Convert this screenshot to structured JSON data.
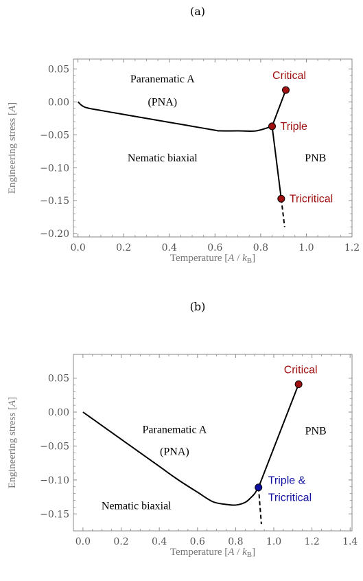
{
  "colors": {
    "critical": "#a01010",
    "triple_tricritical": "#1010a0",
    "curve": "#000000",
    "frame": "#888888"
  },
  "chart_data": [
    {
      "type": "line",
      "panel_label": "(a)",
      "xlabel": "Temperature [A / k_B]",
      "ylabel": "Engineering stress [A]",
      "xlim": [
        -0.02,
        1.2
      ],
      "ylim": [
        -0.205,
        0.065
      ],
      "xticks": [
        0.0,
        0.2,
        0.4,
        0.6,
        0.8,
        1.0,
        1.2
      ],
      "xtick_labels": [
        "0.0",
        "0.2",
        "0.4",
        "0.6",
        "0.8",
        "1.0",
        "1.2"
      ],
      "yticks": [
        0.05,
        0.0,
        -0.05,
        -0.1,
        -0.15,
        -0.2
      ],
      "ytick_labels": [
        "0.05",
        "0.00",
        "−0.05",
        "−0.10",
        "−0.15",
        "−0.20"
      ],
      "grid": false,
      "series": [
        {
          "style": "solid",
          "x": [
            0.0,
            0.03,
            0.1,
            0.2,
            0.3,
            0.4,
            0.5,
            0.6,
            0.62,
            0.7,
            0.78,
            0.85
          ],
          "y": [
            0.0,
            -0.008,
            -0.013,
            -0.019,
            -0.025,
            -0.031,
            -0.037,
            -0.043,
            -0.044,
            -0.044,
            -0.044,
            -0.037
          ]
        },
        {
          "style": "solid",
          "x": [
            0.85,
            0.91
          ],
          "y": [
            -0.037,
            0.018
          ]
        },
        {
          "style": "solid",
          "x": [
            0.85,
            0.89
          ],
          "y": [
            -0.037,
            -0.147
          ]
        },
        {
          "style": "dashed",
          "x": [
            0.89,
            0.905
          ],
          "y": [
            -0.147,
            -0.19
          ]
        }
      ],
      "points": [
        {
          "name": "Critical",
          "x": 0.91,
          "y": 0.018,
          "color": "#a01010"
        },
        {
          "name": "Triple",
          "x": 0.85,
          "y": -0.037,
          "color": "#a01010"
        },
        {
          "name": "Tricritical",
          "x": 0.89,
          "y": -0.147,
          "color": "#a01010"
        }
      ],
      "regions": [
        {
          "text": "Paranematic A",
          "x": 0.37,
          "y": 0.035
        },
        {
          "text": "(PNA)",
          "x": 0.37,
          "y": 0.0
        },
        {
          "text": "Nematic biaxial",
          "x": 0.37,
          "y": -0.085
        },
        {
          "text": "PNB",
          "x": 1.04,
          "y": -0.085
        }
      ]
    },
    {
      "type": "line",
      "panel_label": "(b)",
      "xlabel": "Temperature [A / k_B]",
      "ylabel": "Engineering stress [A]",
      "xlim": [
        -0.05,
        1.41
      ],
      "ylim": [
        -0.175,
        0.085
      ],
      "xticks": [
        0.0,
        0.2,
        0.4,
        0.6,
        0.8,
        1.0,
        1.2,
        1.4
      ],
      "xtick_labels": [
        "0.0",
        "0.2",
        "0.4",
        "0.6",
        "0.8",
        "1.0",
        "1.2",
        "1.4"
      ],
      "yticks": [
        0.05,
        0.0,
        -0.05,
        -0.1,
        -0.15
      ],
      "ytick_labels": [
        "0.05",
        "0.00",
        "−0.05",
        "−0.10",
        "−0.15"
      ],
      "grid": false,
      "series": [
        {
          "style": "solid",
          "x": [
            0.0,
            0.1,
            0.2,
            0.3,
            0.4,
            0.5,
            0.6,
            0.68,
            0.75,
            0.8,
            0.85,
            0.88,
            0.9,
            0.92
          ],
          "y": [
            0.0,
            -0.02,
            -0.04,
            -0.06,
            -0.08,
            -0.1,
            -0.118,
            -0.132,
            -0.136,
            -0.137,
            -0.133,
            -0.126,
            -0.12,
            -0.111
          ]
        },
        {
          "style": "solid",
          "x": [
            0.92,
            1.13
          ],
          "y": [
            -0.111,
            0.041
          ]
        },
        {
          "style": "dashed",
          "x": [
            0.92,
            0.935
          ],
          "y": [
            -0.111,
            -0.165
          ]
        }
      ],
      "points": [
        {
          "name": "Critical",
          "x": 1.13,
          "y": 0.041,
          "color": "#a01010"
        },
        {
          "name": "Triple & Tricritical",
          "x": 0.92,
          "y": -0.111,
          "color": "#1010a0"
        }
      ],
      "regions": [
        {
          "text": "Paranematic A",
          "x": 0.48,
          "y": -0.026
        },
        {
          "text": "(PNA)",
          "x": 0.48,
          "y": -0.058
        },
        {
          "text": "Nematic biaxial",
          "x": 0.28,
          "y": -0.138
        },
        {
          "text": "PNB",
          "x": 1.22,
          "y": -0.028
        }
      ]
    }
  ]
}
